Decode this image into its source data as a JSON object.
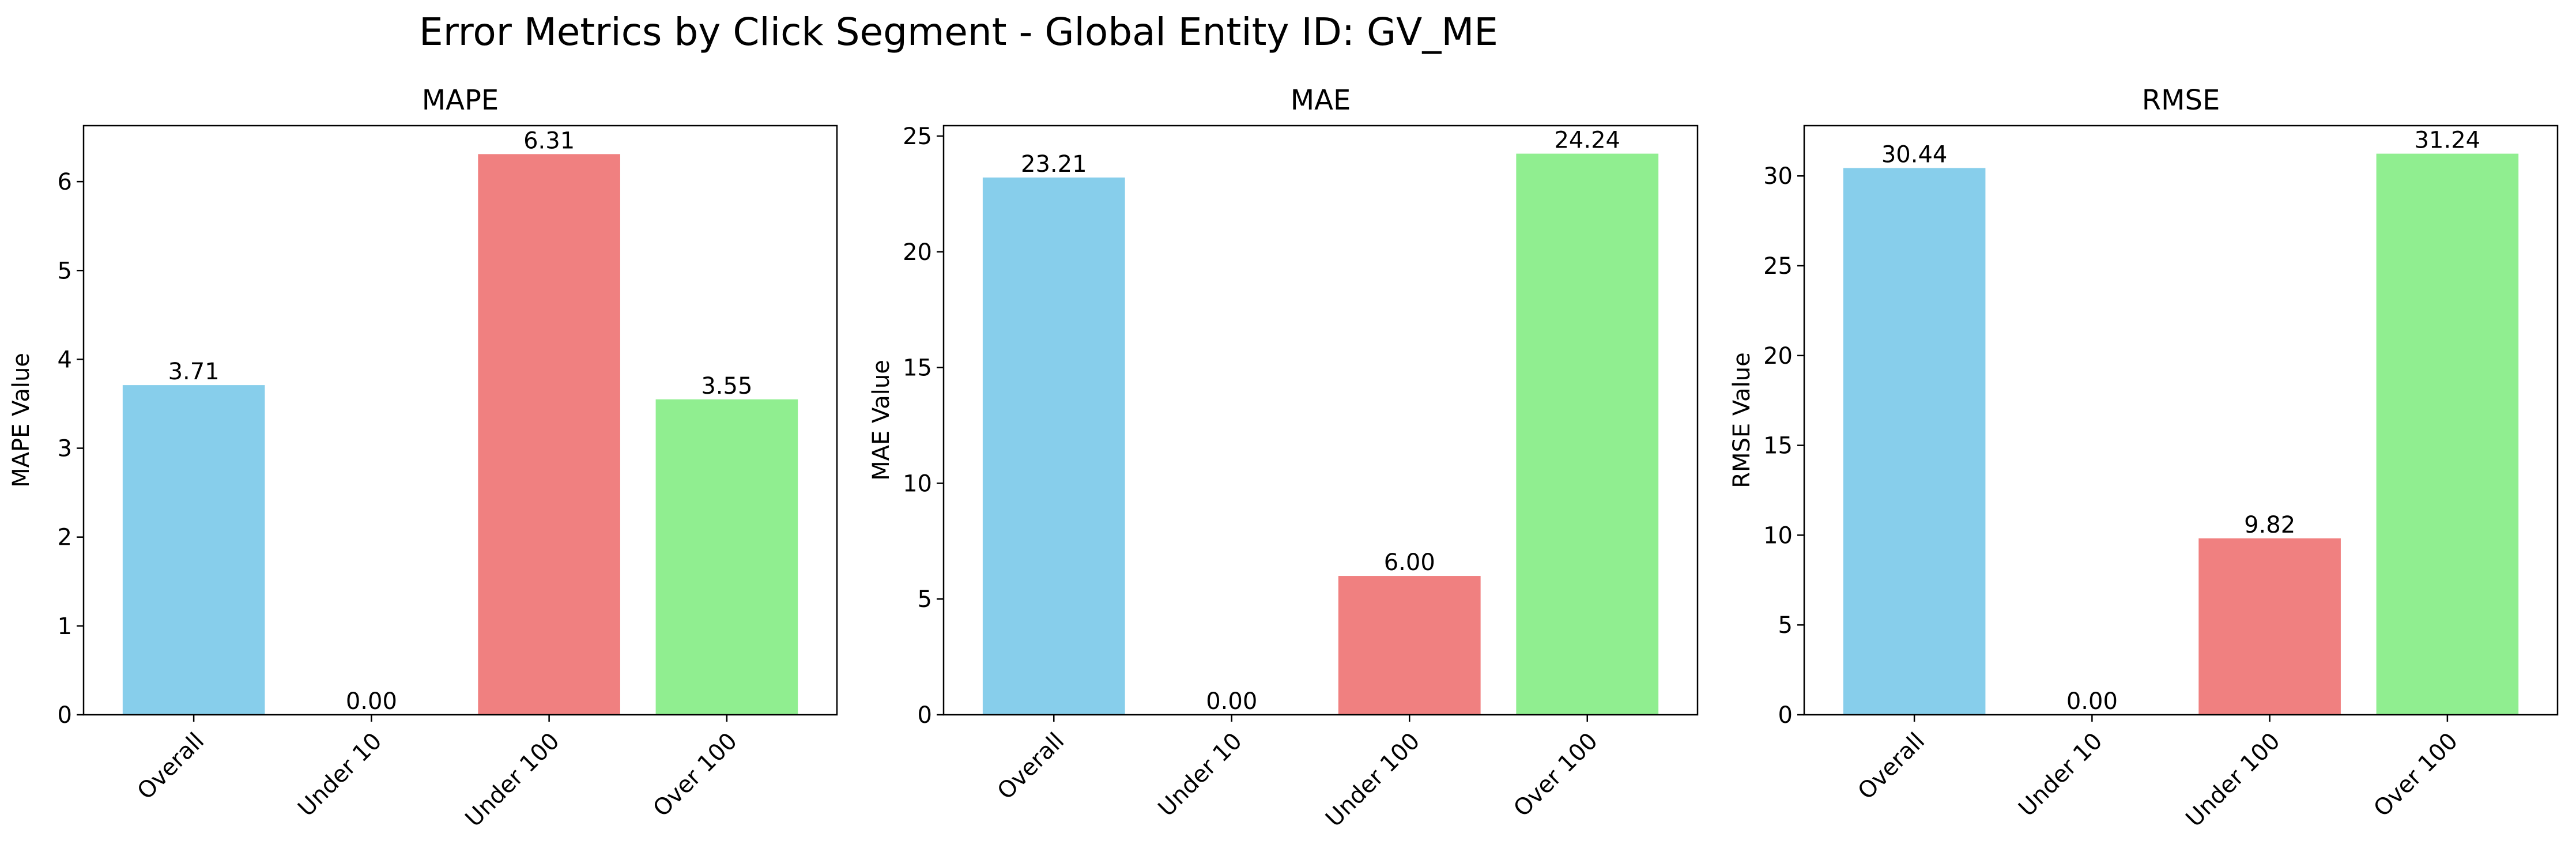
{
  "figure": {
    "suptitle": "Error Metrics by Click Segment - Global Entity ID: GV_ME"
  },
  "colors": {
    "Overall": "#87CEEB",
    "Under 10": "#87CEEB",
    "Under 100": "#F08080",
    "Over 100": "#90EE90"
  },
  "chart_data": [
    {
      "type": "bar",
      "title": "MAPE",
      "xlabel": "",
      "ylabel": "MAPE Value",
      "categories": [
        "Overall",
        "Under 10",
        "Under 100",
        "Over 100"
      ],
      "values": [
        3.71,
        0.0,
        6.31,
        3.55
      ],
      "data_labels": [
        "3.71",
        "0.00",
        "6.31",
        "3.55"
      ],
      "ylim": [
        0,
        6.63
      ],
      "yticks": [
        0,
        1,
        2,
        3,
        4,
        5,
        6
      ],
      "grid": false,
      "xtick_rotation": 45
    },
    {
      "type": "bar",
      "title": "MAE",
      "xlabel": "",
      "ylabel": "MAE Value",
      "categories": [
        "Overall",
        "Under 10",
        "Under 100",
        "Over 100"
      ],
      "values": [
        23.21,
        0.0,
        6.0,
        24.24
      ],
      "data_labels": [
        "23.21",
        "0.00",
        "6.00",
        "24.24"
      ],
      "ylim": [
        0,
        25.45
      ],
      "yticks": [
        0,
        5,
        10,
        15,
        20,
        25
      ],
      "grid": false,
      "xtick_rotation": 45
    },
    {
      "type": "bar",
      "title": "RMSE",
      "xlabel": "",
      "ylabel": "RMSE Value",
      "categories": [
        "Overall",
        "Under 10",
        "Under 100",
        "Over 100"
      ],
      "values": [
        30.44,
        0.0,
        9.82,
        31.24
      ],
      "data_labels": [
        "30.44",
        "0.00",
        "9.82",
        "31.24"
      ],
      "ylim": [
        0,
        32.8
      ],
      "yticks": [
        0,
        5,
        10,
        15,
        20,
        25,
        30
      ],
      "grid": false,
      "xtick_rotation": 45
    }
  ]
}
